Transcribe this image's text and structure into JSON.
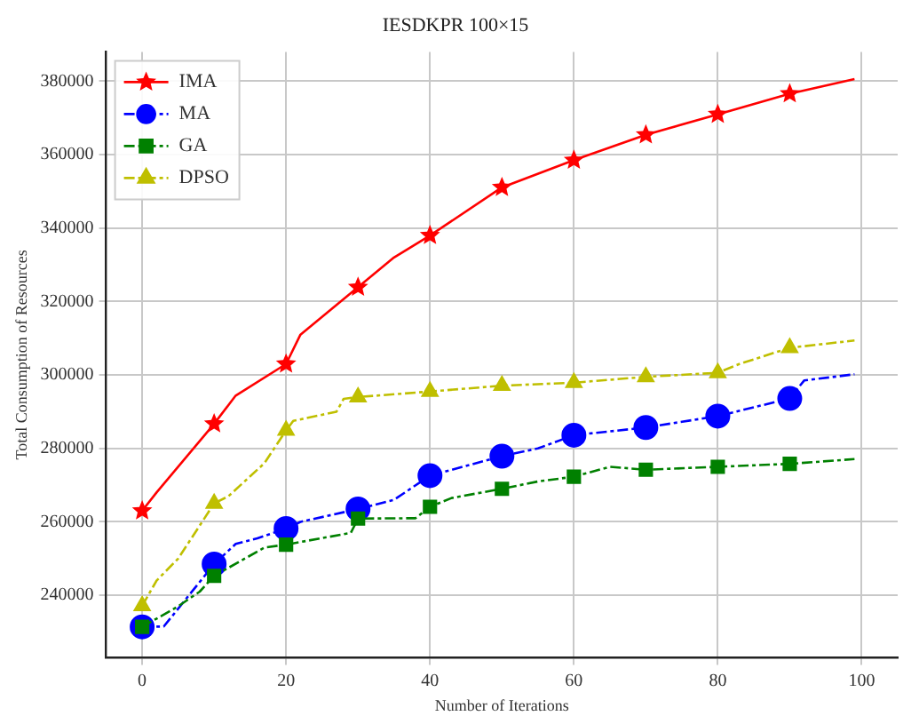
{
  "chart_data": {
    "type": "line",
    "title": "IESDKPR 100×15",
    "xlabel": "Number of Iterations",
    "ylabel": "Total Consumption of Resources",
    "xlim": [
      -5,
      105
    ],
    "xticks": [
      0,
      20,
      40,
      60,
      80,
      100
    ],
    "ylim": [
      223000,
      388000
    ],
    "yticks": [
      240000,
      260000,
      280000,
      300000,
      320000,
      340000,
      360000,
      380000
    ],
    "grid": true,
    "legend": "top left",
    "series": [
      {
        "name": "IMA",
        "color": "#ff0000",
        "marker": "star",
        "line_style": "solid",
        "x": [
          0,
          2,
          10,
          13,
          20,
          22,
          30,
          35,
          40,
          50,
          60,
          70,
          80,
          90,
          99
        ],
        "values": [
          263000,
          268000,
          286700,
          294400,
          303000,
          311000,
          323900,
          332000,
          338000,
          351100,
          358500,
          365400,
          371000,
          376600,
          380600
        ]
      },
      {
        "name": "MA",
        "color": "#0000ff",
        "marker": "circle",
        "line_style": "dashed",
        "x": [
          0,
          3,
          10,
          13,
          16,
          20,
          22,
          30,
          35,
          40,
          50,
          55,
          60,
          70,
          80,
          90,
          92,
          99
        ],
        "values": [
          231400,
          231500,
          248500,
          254000,
          255500,
          258200,
          260000,
          263500,
          266000,
          272600,
          277900,
          280000,
          283600,
          285700,
          288800,
          293600,
          298500,
          300200
        ]
      },
      {
        "name": "GA",
        "color": "#008000",
        "marker": "square",
        "line_style": "dashed",
        "x": [
          0,
          5,
          8,
          10,
          17,
          20,
          29,
          30,
          38,
          40,
          43,
          50,
          55,
          60,
          65,
          70,
          80,
          90,
          99
        ],
        "values": [
          231400,
          237000,
          241000,
          245300,
          253000,
          253800,
          257000,
          260900,
          261000,
          264100,
          266500,
          269000,
          271000,
          272300,
          275000,
          274200,
          275000,
          275800,
          277100
        ]
      },
      {
        "name": "DPSO",
        "color": "#bfbf00",
        "marker": "triangle",
        "line_style": "dashed",
        "x": [
          0,
          2,
          5,
          10,
          12,
          17,
          20,
          21,
          27,
          28,
          30,
          40,
          50,
          60,
          70,
          80,
          83,
          90,
          99
        ],
        "values": [
          237100,
          244000,
          250000,
          265000,
          267000,
          276000,
          284900,
          287500,
          290000,
          293500,
          294000,
          295500,
          297100,
          297900,
          299500,
          300600,
          303000,
          307400,
          309400
        ]
      }
    ]
  }
}
